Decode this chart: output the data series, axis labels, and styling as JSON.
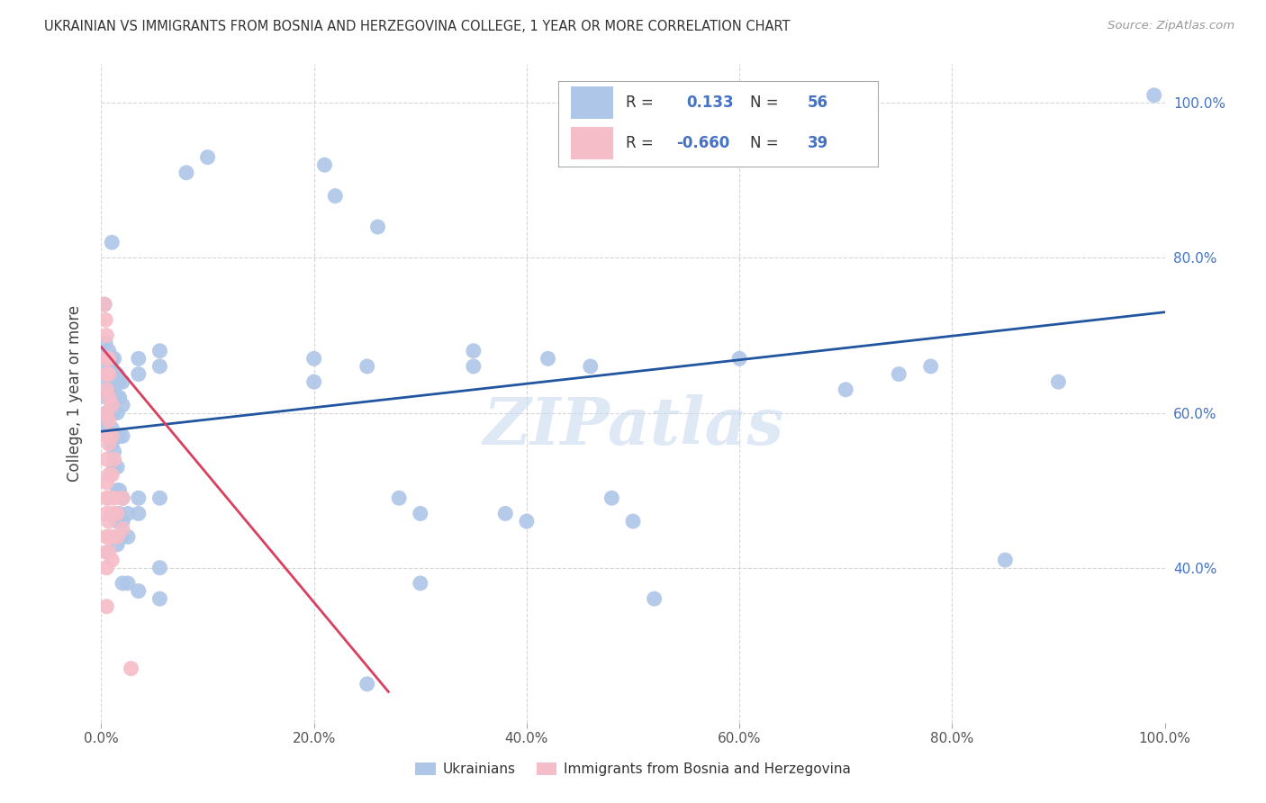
{
  "title": "UKRAINIAN VS IMMIGRANTS FROM BOSNIA AND HERZEGOVINA COLLEGE, 1 YEAR OR MORE CORRELATION CHART",
  "source": "Source: ZipAtlas.com",
  "ylabel": "College, 1 year or more",
  "xlim": [
    0,
    1.0
  ],
  "ylim": [
    0.2,
    1.05
  ],
  "xtick_labels": [
    "0.0%",
    "20.0%",
    "40.0%",
    "60.0%",
    "80.0%",
    "100.0%"
  ],
  "xtick_vals": [
    0,
    0.2,
    0.4,
    0.6,
    0.8,
    1.0
  ],
  "ytick_labels": [
    "40.0%",
    "60.0%",
    "80.0%",
    "100.0%"
  ],
  "ytick_vals": [
    0.4,
    0.6,
    0.8,
    1.0
  ],
  "blue_color": "#aec6e8",
  "pink_color": "#f5bdc8",
  "blue_line_color": "#2255a0",
  "pink_line_color": "#d94060",
  "blue_scatter": [
    [
      0.003,
      0.74
    ],
    [
      0.004,
      0.69
    ],
    [
      0.005,
      0.67
    ],
    [
      0.005,
      0.65
    ],
    [
      0.005,
      0.63
    ],
    [
      0.005,
      0.62
    ],
    [
      0.005,
      0.6
    ],
    [
      0.005,
      0.59
    ],
    [
      0.005,
      0.58
    ],
    [
      0.007,
      0.68
    ],
    [
      0.007,
      0.66
    ],
    [
      0.007,
      0.64
    ],
    [
      0.007,
      0.62
    ],
    [
      0.007,
      0.6
    ],
    [
      0.007,
      0.57
    ],
    [
      0.01,
      0.82
    ],
    [
      0.01,
      0.67
    ],
    [
      0.01,
      0.64
    ],
    [
      0.01,
      0.62
    ],
    [
      0.01,
      0.6
    ],
    [
      0.01,
      0.58
    ],
    [
      0.01,
      0.56
    ],
    [
      0.012,
      0.67
    ],
    [
      0.012,
      0.65
    ],
    [
      0.012,
      0.63
    ],
    [
      0.012,
      0.6
    ],
    [
      0.012,
      0.57
    ],
    [
      0.012,
      0.55
    ],
    [
      0.012,
      0.53
    ],
    [
      0.015,
      0.65
    ],
    [
      0.015,
      0.62
    ],
    [
      0.015,
      0.6
    ],
    [
      0.015,
      0.57
    ],
    [
      0.015,
      0.53
    ],
    [
      0.015,
      0.5
    ],
    [
      0.015,
      0.46
    ],
    [
      0.015,
      0.43
    ],
    [
      0.017,
      0.64
    ],
    [
      0.017,
      0.62
    ],
    [
      0.017,
      0.57
    ],
    [
      0.017,
      0.5
    ],
    [
      0.017,
      0.47
    ],
    [
      0.017,
      0.44
    ],
    [
      0.02,
      0.64
    ],
    [
      0.02,
      0.61
    ],
    [
      0.02,
      0.57
    ],
    [
      0.02,
      0.49
    ],
    [
      0.02,
      0.46
    ],
    [
      0.02,
      0.44
    ],
    [
      0.02,
      0.38
    ],
    [
      0.025,
      0.47
    ],
    [
      0.025,
      0.44
    ],
    [
      0.025,
      0.38
    ],
    [
      0.035,
      0.67
    ],
    [
      0.035,
      0.65
    ],
    [
      0.035,
      0.49
    ],
    [
      0.035,
      0.47
    ],
    [
      0.035,
      0.37
    ],
    [
      0.055,
      0.68
    ],
    [
      0.055,
      0.66
    ],
    [
      0.055,
      0.49
    ],
    [
      0.055,
      0.4
    ],
    [
      0.055,
      0.36
    ],
    [
      0.08,
      0.91
    ],
    [
      0.1,
      0.93
    ],
    [
      0.2,
      0.67
    ],
    [
      0.2,
      0.64
    ],
    [
      0.21,
      0.92
    ],
    [
      0.22,
      0.88
    ],
    [
      0.25,
      0.66
    ],
    [
      0.26,
      0.84
    ],
    [
      0.28,
      0.49
    ],
    [
      0.3,
      0.47
    ],
    [
      0.3,
      0.38
    ],
    [
      0.35,
      0.68
    ],
    [
      0.35,
      0.66
    ],
    [
      0.38,
      0.47
    ],
    [
      0.4,
      0.46
    ],
    [
      0.42,
      0.67
    ],
    [
      0.46,
      0.66
    ],
    [
      0.48,
      0.49
    ],
    [
      0.5,
      0.46
    ],
    [
      0.52,
      0.36
    ],
    [
      0.6,
      0.67
    ],
    [
      0.7,
      0.63
    ],
    [
      0.75,
      0.65
    ],
    [
      0.78,
      0.66
    ],
    [
      0.85,
      0.41
    ],
    [
      0.9,
      0.64
    ],
    [
      0.99,
      1.01
    ],
    [
      0.25,
      0.25
    ]
  ],
  "pink_scatter": [
    [
      0.003,
      0.74
    ],
    [
      0.004,
      0.72
    ],
    [
      0.005,
      0.7
    ],
    [
      0.005,
      0.67
    ],
    [
      0.005,
      0.65
    ],
    [
      0.005,
      0.63
    ],
    [
      0.005,
      0.6
    ],
    [
      0.005,
      0.57
    ],
    [
      0.005,
      0.54
    ],
    [
      0.005,
      0.51
    ],
    [
      0.005,
      0.49
    ],
    [
      0.005,
      0.47
    ],
    [
      0.005,
      0.44
    ],
    [
      0.005,
      0.42
    ],
    [
      0.005,
      0.4
    ],
    [
      0.005,
      0.35
    ],
    [
      0.007,
      0.67
    ],
    [
      0.007,
      0.65
    ],
    [
      0.007,
      0.62
    ],
    [
      0.007,
      0.59
    ],
    [
      0.007,
      0.56
    ],
    [
      0.007,
      0.52
    ],
    [
      0.007,
      0.49
    ],
    [
      0.007,
      0.46
    ],
    [
      0.007,
      0.44
    ],
    [
      0.007,
      0.42
    ],
    [
      0.01,
      0.61
    ],
    [
      0.01,
      0.57
    ],
    [
      0.01,
      0.52
    ],
    [
      0.01,
      0.47
    ],
    [
      0.01,
      0.44
    ],
    [
      0.01,
      0.41
    ],
    [
      0.012,
      0.54
    ],
    [
      0.012,
      0.49
    ],
    [
      0.015,
      0.47
    ],
    [
      0.015,
      0.44
    ],
    [
      0.02,
      0.49
    ],
    [
      0.02,
      0.45
    ],
    [
      0.028,
      0.27
    ]
  ],
  "blue_line_x": [
    0.0,
    1.0
  ],
  "blue_line_y": [
    0.576,
    0.73
  ],
  "pink_line_x": [
    0.0,
    0.27
  ],
  "pink_line_y": [
    0.685,
    0.24
  ],
  "watermark": "ZIPatlas",
  "background_color": "#ffffff",
  "grid_color": "#cccccc",
  "legend_blue_label": "Ukrainians",
  "legend_pink_label": "Immigrants from Bosnia and Herzegovina"
}
